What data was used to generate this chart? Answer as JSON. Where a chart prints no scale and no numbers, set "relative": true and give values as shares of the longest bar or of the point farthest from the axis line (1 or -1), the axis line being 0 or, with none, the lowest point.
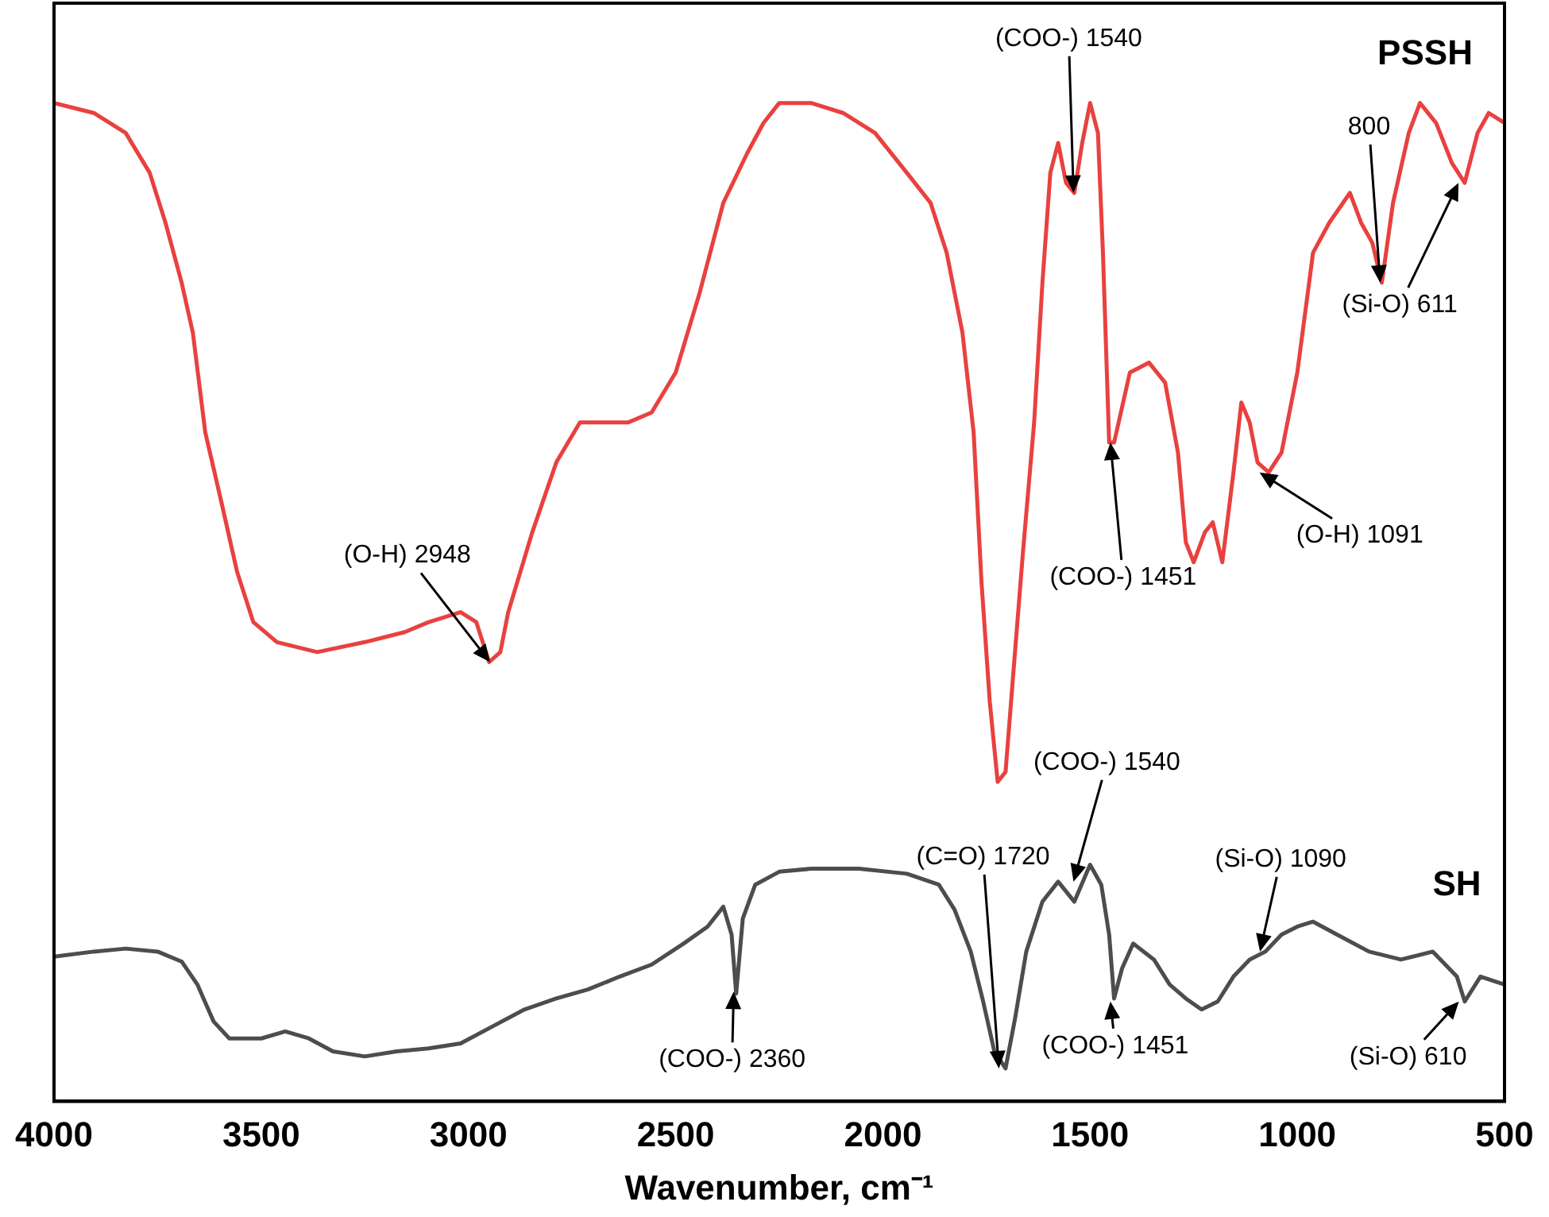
{
  "chart_data": {
    "type": "line",
    "xlabel": "Wavenumber, cm⁻¹",
    "relative": true,
    "xlim": [
      4000,
      500
    ],
    "xticks": [
      4000,
      3500,
      3000,
      2500,
      2000,
      1500,
      1000,
      500
    ],
    "tick_labels": "x",
    "grid": false,
    "legend": false,
    "marker": "none",
    "line_style": "solid",
    "series": [
      {
        "name": "PSSH",
        "color": "#e8413f",
        "x": [
          4000,
          3904,
          3827,
          3769,
          3731,
          3692,
          3665,
          3635,
          3596,
          3558,
          3519,
          3462,
          3365,
          3250,
          3154,
          3096,
          3019,
          2981,
          2950,
          2923,
          2904,
          2846,
          2788,
          2731,
          2692,
          2615,
          2558,
          2500,
          2442,
          2385,
          2327,
          2288,
          2250,
          2173,
          2096,
          2019,
          1942,
          1885,
          1846,
          1808,
          1781,
          1762,
          1742,
          1723,
          1704,
          1685,
          1662,
          1635,
          1615,
          1596,
          1577,
          1558,
          1538,
          1519,
          1500,
          1481,
          1469,
          1454,
          1442,
          1404,
          1358,
          1319,
          1288,
          1269,
          1250,
          1223,
          1204,
          1181,
          1154,
          1135,
          1115,
          1096,
          1069,
          1038,
          1000,
          962,
          923,
          873,
          846,
          819,
          796,
          769,
          731,
          704,
          665,
          627,
          596,
          565,
          538,
          500
        ],
        "values": [
          1,
          0.99,
          0.97,
          0.93,
          0.88,
          0.82,
          0.77,
          0.67,
          0.6,
          0.53,
          0.48,
          0.46,
          0.45,
          0.46,
          0.47,
          0.48,
          0.49,
          0.48,
          0.44,
          0.45,
          0.49,
          0.57,
          0.64,
          0.68,
          0.68,
          0.68,
          0.69,
          0.73,
          0.81,
          0.9,
          0.95,
          0.98,
          1,
          1,
          0.99,
          0.97,
          0.93,
          0.9,
          0.85,
          0.77,
          0.67,
          0.52,
          0.4,
          0.32,
          0.33,
          0.43,
          0.55,
          0.68,
          0.82,
          0.93,
          0.96,
          0.92,
          0.91,
          0.96,
          1,
          0.97,
          0.85,
          0.66,
          0.66,
          0.73,
          0.74,
          0.72,
          0.65,
          0.56,
          0.54,
          0.57,
          0.58,
          0.54,
          0.63,
          0.7,
          0.68,
          0.64,
          0.63,
          0.65,
          0.73,
          0.85,
          0.88,
          0.91,
          0.88,
          0.86,
          0.82,
          0.9,
          0.97,
          1,
          0.98,
          0.94,
          0.92,
          0.97,
          0.99,
          0.98
        ]
      },
      {
        "name": "SH",
        "color": "#4d4d4d",
        "x": [
          4000,
          3904,
          3827,
          3750,
          3692,
          3654,
          3615,
          3577,
          3500,
          3442,
          3385,
          3327,
          3250,
          3173,
          3096,
          3019,
          2942,
          2865,
          2788,
          2712,
          2635,
          2558,
          2481,
          2423,
          2385,
          2365,
          2354,
          2338,
          2308,
          2250,
          2173,
          2058,
          1942,
          1865,
          1827,
          1788,
          1758,
          1731,
          1704,
          1681,
          1654,
          1615,
          1577,
          1538,
          1500,
          1473,
          1454,
          1442,
          1423,
          1396,
          1346,
          1308,
          1269,
          1231,
          1192,
          1154,
          1115,
          1077,
          1038,
          1000,
          962,
          904,
          827,
          750,
          673,
          615,
          596,
          558,
          500
        ],
        "values": [
          0.145,
          0.15,
          0.153,
          0.15,
          0.14,
          0.117,
          0.08,
          0.063,
          0.063,
          0.07,
          0.063,
          0.05,
          0.045,
          0.05,
          0.053,
          0.058,
          0.075,
          0.092,
          0.103,
          0.112,
          0.125,
          0.137,
          0.158,
          0.175,
          0.195,
          0.167,
          0.108,
          0.183,
          0.217,
          0.23,
          0.233,
          0.233,
          0.228,
          0.217,
          0.192,
          0.15,
          0.1,
          0.05,
          0.033,
          0.083,
          0.15,
          0.2,
          0.22,
          0.2,
          0.237,
          0.217,
          0.167,
          0.103,
          0.133,
          0.158,
          0.142,
          0.117,
          0.103,
          0.092,
          0.1,
          0.125,
          0.142,
          0.15,
          0.167,
          0.175,
          0.18,
          0.167,
          0.15,
          0.142,
          0.15,
          0.125,
          0.1,
          0.125,
          0.117
        ]
      }
    ],
    "annotations": [
      {
        "text": "(O-H) 2948",
        "x": 2948,
        "y": 0.44
      },
      {
        "text": "(COO-) 1540",
        "x": 1540,
        "y": 0.91
      },
      {
        "text": "800",
        "x": 800,
        "y": 0.82
      },
      {
        "text": "(Si-O) 611",
        "x": 611,
        "y": 0.92
      },
      {
        "text": "(COO-) 1451",
        "x": 1451,
        "y": 0.66
      },
      {
        "text": "(O-H) 1091",
        "x": 1091,
        "y": 0.63
      },
      {
        "text": "(C=O) 1720",
        "x": 1720,
        "y": 0.033
      },
      {
        "text": "(COO-) 1540",
        "x": 1540,
        "y": 0.22
      },
      {
        "text": "(COO-) 1451",
        "x": 1451,
        "y": 0.1
      },
      {
        "text": "(Si-O) 1090",
        "x": 1090,
        "y": 0.15
      },
      {
        "text": "(COO-) 2360",
        "x": 2360,
        "y": 0.11
      },
      {
        "text": "(Si-O) 610",
        "x": 610,
        "y": 0.1
      }
    ]
  }
}
